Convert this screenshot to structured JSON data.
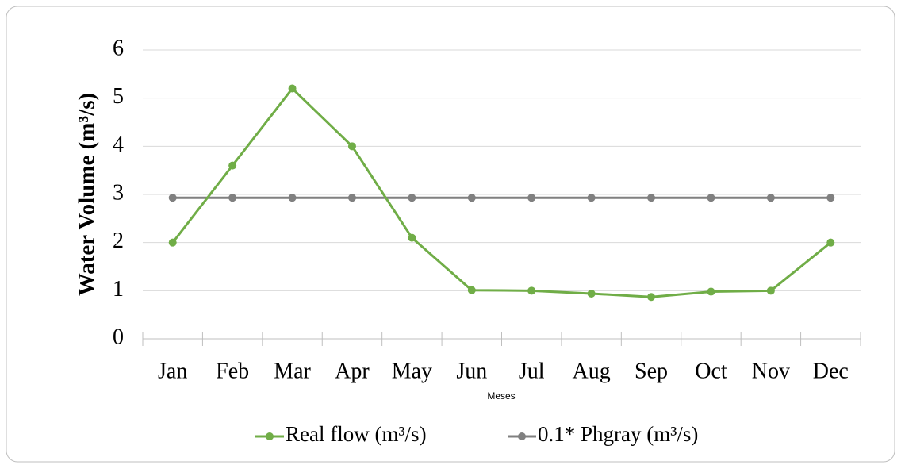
{
  "chart_data": {
    "type": "line",
    "y_label": "Water Volume (m³/s)",
    "x_label": "Meses",
    "categories": [
      "Jan",
      "Feb",
      "Mar",
      "Apr",
      "May",
      "Jun",
      "Jul",
      "Aug",
      "Sep",
      "Oct",
      "Nov",
      "Dec"
    ],
    "series": [
      {
        "name": "Real flow (m³/s)",
        "color": "#70ad47",
        "values": [
          2,
          3.6,
          5.2,
          4,
          2.1,
          1.01,
          1.0,
          0.94,
          0.87,
          0.98,
          1.0,
          2.0
        ]
      },
      {
        "name": "0.1* Phgray (m³/s)",
        "color": "#808080",
        "values": [
          2.93,
          2.93,
          2.93,
          2.93,
          2.93,
          2.93,
          2.93,
          2.93,
          2.93,
          2.93,
          2.93,
          2.93
        ]
      }
    ],
    "ylim": [
      0,
      6
    ],
    "yticks": [
      0,
      1,
      2,
      3,
      4,
      5,
      6
    ],
    "grid": true,
    "legend": "bottom"
  }
}
